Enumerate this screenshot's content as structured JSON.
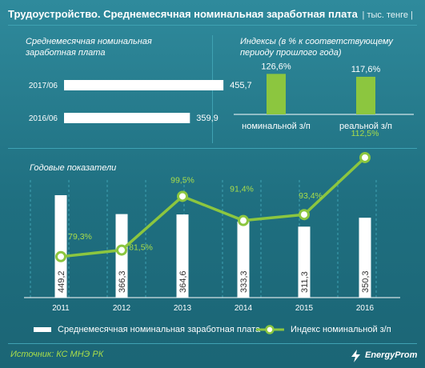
{
  "header": {
    "title": "Трудоустройство. Среднемесячная номинальная заработная плата",
    "unit": "| тыс. тенге |"
  },
  "chart_data": [
    {
      "type": "bar",
      "orientation": "horizontal",
      "title_lines": [
        "Среднемесячная номинальная",
        "заработная плата"
      ],
      "categories": [
        "2017/06",
        "2016/06"
      ],
      "values": [
        455.7,
        359.9
      ],
      "labels": [
        "455,7",
        "359,9"
      ],
      "bar_color": "#ffffff"
    },
    {
      "type": "bar",
      "title_lines": [
        "Индексы (в % к соответствующему",
        "периоду прошлого года)"
      ],
      "categories": [
        "номинальной з/п",
        "реальной з/п"
      ],
      "values": [
        126.6,
        117.6
      ],
      "labels": [
        "126,6%",
        "117,6%"
      ],
      "bar_color": "#8cc63f"
    },
    {
      "type": "bar+line",
      "title": "Годовые показатели",
      "categories": [
        "2011",
        "2012",
        "2013",
        "2014",
        "2015",
        "2016"
      ],
      "series": [
        {
          "name": "Среднемесячная номинальная заработная плата",
          "type": "bar",
          "color": "#ffffff",
          "values": [
            449.2,
            366.3,
            364.6,
            333.3,
            311.3,
            350.3
          ],
          "labels": [
            "449,2",
            "366,3",
            "364,6",
            "333,3",
            "311,3",
            "350,3"
          ]
        },
        {
          "name": "Индекс номинальной з/п",
          "type": "line",
          "color": "#8cc63f",
          "values": [
            79.3,
            81.5,
            99.5,
            91.4,
            93.4,
            112.5
          ],
          "labels": [
            "79,3%",
            "81,5%",
            "99,5%",
            "91,4%",
            "93,4%",
            "112,5%"
          ]
        }
      ]
    }
  ],
  "footer": {
    "source": "Источник: КС МНЭ РК",
    "logo_text": "EnergyProm"
  },
  "colors": {
    "background": "#1f6f80",
    "bars": "#ffffff",
    "accent": "#8cc63f",
    "divider": "#3fa2b3"
  }
}
